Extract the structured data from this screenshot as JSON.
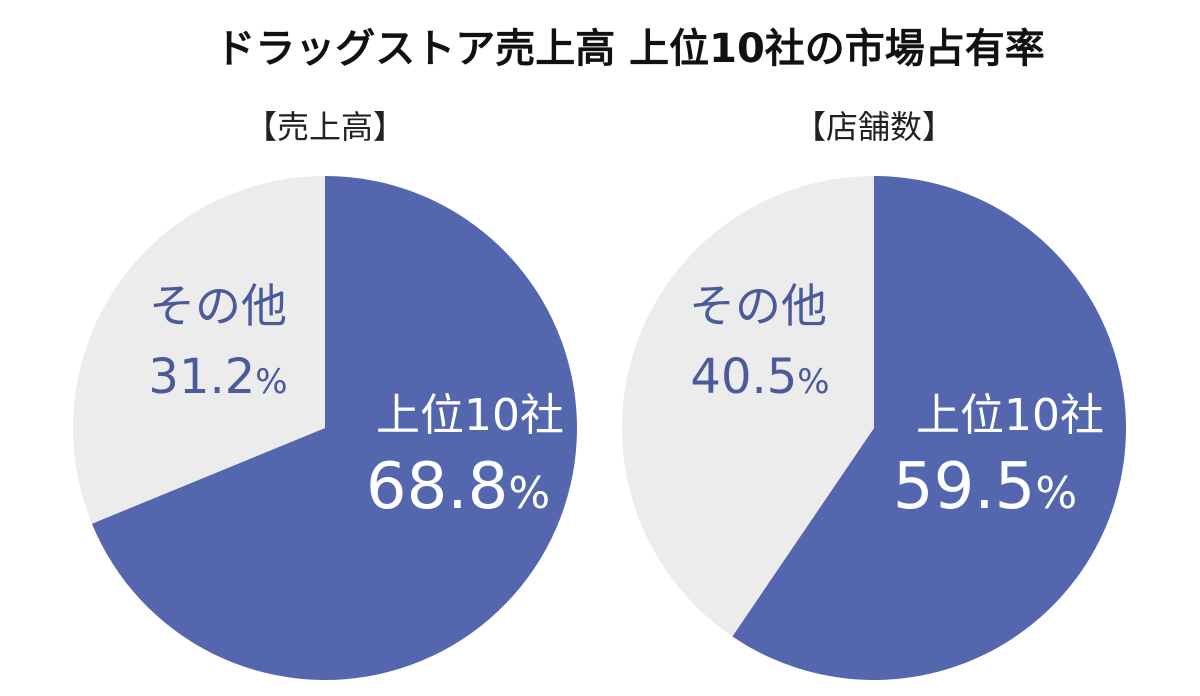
{
  "title": "ドラッグストア売上高 上位10社の市場占有率",
  "chart_data": [
    {
      "type": "pie",
      "subtitle": "【売上高】",
      "slices": [
        {
          "label": "上位10社",
          "value": 68.8,
          "color": "#5366ae"
        },
        {
          "label": "その他",
          "value": 31.2,
          "color": "#ececec"
        }
      ],
      "unit": "%"
    },
    {
      "type": "pie",
      "subtitle": "【店舗数】",
      "slices": [
        {
          "label": "上位10社",
          "value": 59.5,
          "color": "#5366ae"
        },
        {
          "label": "その他",
          "value": 40.5,
          "color": "#ececec"
        }
      ],
      "unit": "%"
    }
  ]
}
